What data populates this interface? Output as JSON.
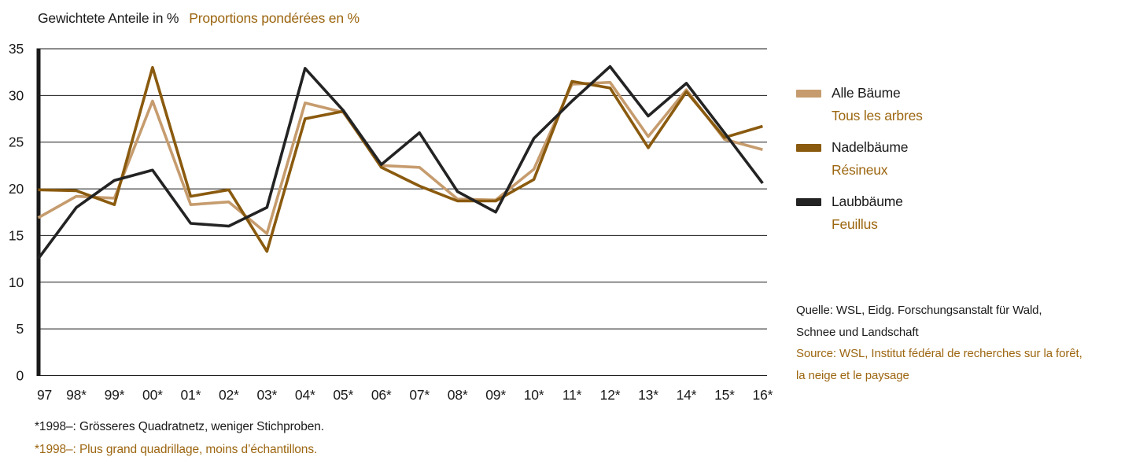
{
  "header": {
    "title_de": "Gewichtete Anteile in %",
    "title_fr": "Proportions pondérées en %"
  },
  "source": {
    "de_line1": "Quelle: WSL, Eidg. Forschungsanstalt für Wald,",
    "de_line2": "Schnee und Landschaft",
    "fr_line1": "Source: WSL, Institut fédéral de recherches sur la forêt,",
    "fr_line2": "la neige et le paysage"
  },
  "footnotes": {
    "de": "*1998–: Grösseres Quadratnetz, weniger Stichproben.",
    "fr": "*1998–: Plus grand quadrillage, moins d’échantillons."
  },
  "colors": {
    "text_black": "#1a1a1a",
    "text_brown": "#9c6610",
    "all_trees": "#c69c6e",
    "conifers": "#8a5a0e",
    "broadleaves": "#232323"
  },
  "chart_data": {
    "type": "line",
    "title": "Gewichtete Anteile in % / Proportions pondérées en %",
    "categories": [
      "97",
      "98*",
      "99*",
      "00*",
      "01*",
      "02*",
      "03*",
      "04*",
      "05*",
      "06*",
      "07*",
      "08*",
      "09*",
      "10*",
      "11*",
      "12*",
      "13*",
      "14*",
      "15*",
      "16*"
    ],
    "series": [
      {
        "id": "alle-baeume",
        "name_de": "Alle Bäume",
        "name_fr": "Tous les arbres",
        "color": "#c69c6e",
        "values": [
          16.9,
          19.2,
          19.0,
          29.4,
          18.3,
          18.6,
          15.2,
          29.2,
          28.2,
          22.5,
          22.3,
          18.9,
          18.8,
          22.1,
          31.2,
          31.4,
          25.6,
          30.6,
          25.3,
          24.2
        ]
      },
      {
        "id": "nadelbaeume",
        "name_de": "Nadelbäume",
        "name_fr": "Résineux",
        "color": "#8a5a0e",
        "values": [
          19.9,
          19.8,
          18.3,
          33.0,
          19.2,
          19.9,
          13.3,
          27.5,
          28.3,
          22.3,
          20.3,
          18.7,
          18.7,
          21.0,
          31.5,
          30.8,
          24.4,
          30.4,
          25.5,
          26.7
        ]
      },
      {
        "id": "laubbaeume",
        "name_de": "Laubbäume",
        "name_fr": "Feuillus",
        "color": "#232323",
        "values": [
          12.5,
          18.0,
          20.9,
          22.0,
          16.3,
          16.0,
          18.0,
          32.9,
          28.4,
          22.6,
          26.0,
          19.7,
          17.5,
          25.4,
          29.4,
          33.1,
          27.8,
          31.3,
          26.0,
          20.6
        ]
      }
    ],
    "xlabel": "",
    "ylabel": "",
    "ylim": [
      0,
      35
    ],
    "yticks": [
      35,
      30,
      25,
      20,
      15,
      10,
      5,
      0
    ],
    "grid": true,
    "legend_position": "right"
  }
}
